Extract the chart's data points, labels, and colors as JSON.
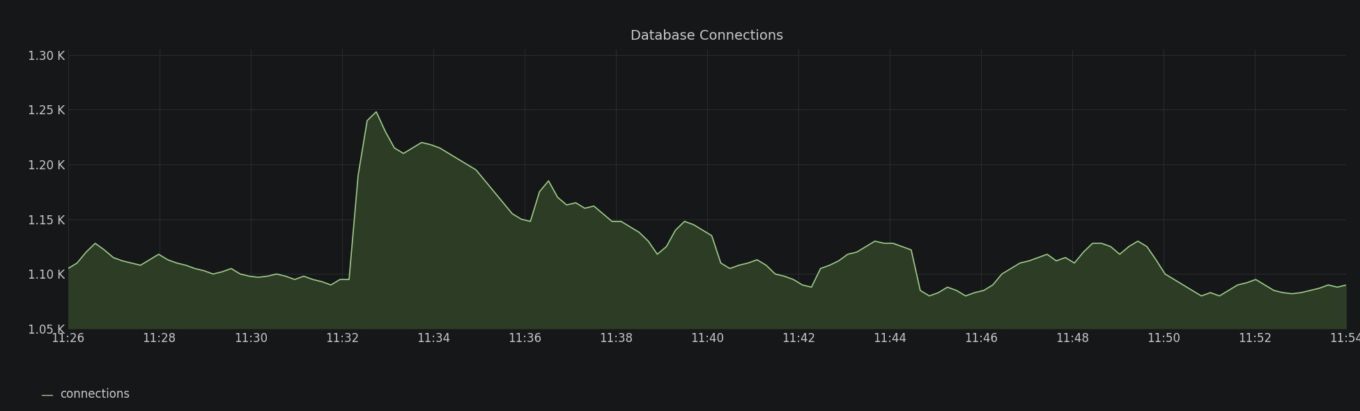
{
  "title": "Database Connections",
  "background_color": "#161719",
  "plot_background_color": "#161719",
  "line_color": "#9fcf8b",
  "fill_color": "#2d3d25",
  "grid_color": "#2e2f32",
  "text_color": "#c8c8c8",
  "legend_label": "connections",
  "ylim": [
    1050,
    1305
  ],
  "yticks": [
    1050,
    1100,
    1150,
    1200,
    1250,
    1300
  ],
  "ytick_labels": [
    "1.05 K",
    "1.10 K",
    "1.15 K",
    "1.20 K",
    "1.25 K",
    "1.30 K"
  ],
  "xtick_labels": [
    "11:26",
    "11:28",
    "11:30",
    "11:32",
    "11:34",
    "11:36",
    "11:38",
    "11:40",
    "11:42",
    "11:44",
    "11:46",
    "11:48",
    "11:50",
    "11:52",
    "11:54"
  ],
  "y_values": [
    1105,
    1110,
    1120,
    1128,
    1122,
    1115,
    1112,
    1110,
    1108,
    1113,
    1118,
    1113,
    1110,
    1108,
    1105,
    1103,
    1100,
    1102,
    1105,
    1100,
    1098,
    1097,
    1098,
    1100,
    1098,
    1095,
    1098,
    1095,
    1093,
    1090,
    1095,
    1095,
    1190,
    1240,
    1248,
    1230,
    1215,
    1210,
    1215,
    1220,
    1218,
    1215,
    1210,
    1205,
    1200,
    1195,
    1185,
    1175,
    1165,
    1155,
    1150,
    1148,
    1175,
    1185,
    1170,
    1163,
    1165,
    1160,
    1162,
    1155,
    1148,
    1148,
    1143,
    1138,
    1130,
    1118,
    1125,
    1140,
    1148,
    1145,
    1140,
    1135,
    1110,
    1105,
    1108,
    1110,
    1113,
    1108,
    1100,
    1098,
    1095,
    1090,
    1088,
    1105,
    1108,
    1112,
    1118,
    1120,
    1125,
    1130,
    1128,
    1128,
    1125,
    1122,
    1085,
    1080,
    1083,
    1088,
    1085,
    1080,
    1083,
    1085,
    1090,
    1100,
    1105,
    1110,
    1112,
    1115,
    1118,
    1112,
    1115,
    1110,
    1120,
    1128,
    1128,
    1125,
    1118,
    1125,
    1130,
    1125,
    1113,
    1100,
    1095,
    1090,
    1085,
    1080,
    1083,
    1080,
    1085,
    1090,
    1092,
    1095,
    1090,
    1085,
    1083,
    1082,
    1083,
    1085,
    1087,
    1090,
    1088,
    1090
  ],
  "line_width": 1.2,
  "title_fontsize": 14,
  "tick_fontsize": 12
}
